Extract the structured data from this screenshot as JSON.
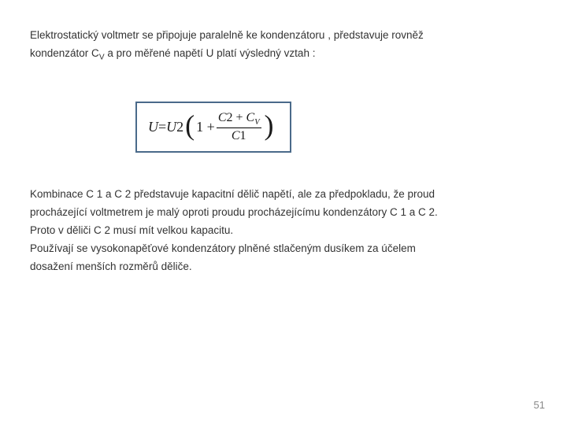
{
  "intro": {
    "line1": "Elektrostatický voltmetr se připojuje paralelně ke kondenzátoru , představuje rovněž",
    "line2_pre": "kondenzátor C",
    "line2_sub": "V",
    "line2_post": " a pro měřené napětí U platí výsledný vztah :"
  },
  "formula": {
    "U": "U",
    "eq": " = ",
    "U2": "U",
    "two": "2",
    "open": "(",
    "one_plus": "1 + ",
    "num_a": "C",
    "num_a2": "2",
    "num_plus": " + ",
    "num_c": "C",
    "num_csub": "V",
    "den_c": "C",
    "den_c1": "1",
    "close": ")"
  },
  "body": {
    "p1": "Kombinace C 1 a C 2 představuje kapacitní dělič napětí, ale za předpokladu, že proud",
    "p2": "procházející voltmetrem je malý oproti proudu procházejícímu kondenzátory C 1 a C 2.",
    "p3": "Proto v děliči C 2 musí mít velkou kapacitu.",
    "p4": "Používají se vysokonapěťové kondenzátory plněné stlačeným dusíkem za účelem",
    "p5": "dosažení menších rozměrů děliče."
  },
  "pagenum": "51",
  "style": {
    "text_color": "#333333",
    "border_color": "#4a6a8a",
    "pagenum_color": "#888888",
    "bg": "#ffffff",
    "font_body_pt": 13.5,
    "font_formula_pt": 18
  }
}
